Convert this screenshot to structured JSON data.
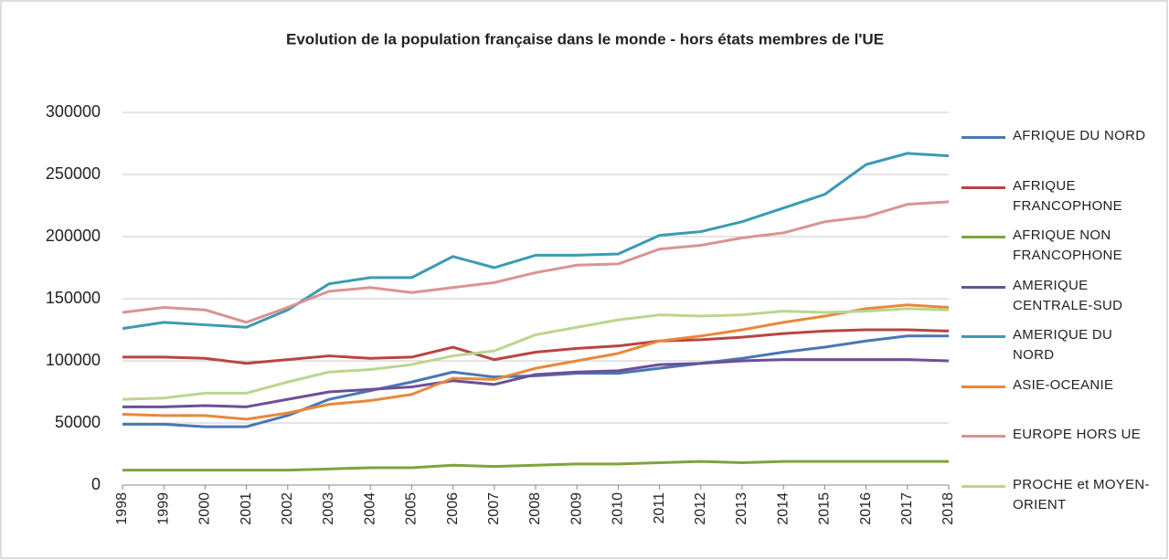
{
  "chart_data": {
    "type": "line",
    "title": "Evolution de la population française dans le monde - hors états membres de l'UE",
    "categories": [
      "1998",
      "1999",
      "2000",
      "2001",
      "2002",
      "2003",
      "2004",
      "2005",
      "2006",
      "2007",
      "2008",
      "2009",
      "2010",
      "2011",
      "2012",
      "2013",
      "2014",
      "2015",
      "2016",
      "2017",
      "2018"
    ],
    "ylim": [
      0,
      300000
    ],
    "yticks": [
      0,
      50000,
      100000,
      150000,
      200000,
      250000,
      300000
    ],
    "grid": true,
    "legend": "right",
    "series": [
      {
        "name": "AFRIQUE DU NORD",
        "color": "#4a76b5",
        "values": [
          49000,
          49000,
          47000,
          47000,
          56000,
          69000,
          76000,
          83000,
          91000,
          87000,
          88000,
          90000,
          90000,
          94000,
          98000,
          102000,
          107000,
          111000,
          116000,
          120000,
          120000
        ]
      },
      {
        "name": "AFRIQUE FRANCOPHONE",
        "color": "#b84542",
        "values": [
          103000,
          103000,
          102000,
          98000,
          101000,
          104000,
          102000,
          103000,
          111000,
          101000,
          107000,
          110000,
          112000,
          116000,
          117000,
          119000,
          122000,
          124000,
          125000,
          125000,
          124000
        ]
      },
      {
        "name": "AFRIQUE NON FRANCOPHONE",
        "color": "#7ea43f",
        "values": [
          12000,
          12000,
          12000,
          12000,
          12000,
          13000,
          14000,
          14000,
          16000,
          15000,
          16000,
          17000,
          17000,
          18000,
          19000,
          18000,
          19000,
          19000,
          19000,
          19000,
          19000
        ]
      },
      {
        "name": "AMERIQUE CENTRALE-SUD",
        "color": "#6d4f96",
        "values": [
          63000,
          63000,
          64000,
          63000,
          69000,
          75000,
          77000,
          79000,
          84000,
          81000,
          89000,
          91000,
          92000,
          97000,
          98000,
          100000,
          101000,
          101000,
          101000,
          101000,
          100000
        ]
      },
      {
        "name": "AMERIQUE DU NORD",
        "color": "#3c9bb3",
        "values": [
          126000,
          131000,
          129000,
          127000,
          141000,
          162000,
          167000,
          167000,
          184000,
          175000,
          185000,
          185000,
          186000,
          201000,
          204000,
          212000,
          223000,
          234000,
          258000,
          267000,
          265000
        ]
      },
      {
        "name": "ASIE-OCEANIE",
        "color": "#e8883b",
        "values": [
          57000,
          56000,
          56000,
          53000,
          58000,
          65000,
          68000,
          73000,
          86000,
          85000,
          94000,
          100000,
          106000,
          116000,
          120000,
          125000,
          131000,
          136000,
          142000,
          145000,
          143000
        ]
      },
      {
        "name": "EUROPE HORS UE",
        "color": "#d99492",
        "values": [
          139000,
          143000,
          141000,
          131000,
          143000,
          156000,
          159000,
          155000,
          159000,
          163000,
          171000,
          177000,
          178000,
          190000,
          193000,
          199000,
          203000,
          212000,
          216000,
          226000,
          228000
        ]
      },
      {
        "name": "PROCHE et MOYEN-ORIENT",
        "color": "#bcd58f",
        "values": [
          69000,
          70000,
          74000,
          74000,
          83000,
          91000,
          93000,
          97000,
          104000,
          108000,
          121000,
          127000,
          133000,
          137000,
          136000,
          137000,
          140000,
          139000,
          140000,
          142000,
          141000
        ]
      }
    ]
  }
}
